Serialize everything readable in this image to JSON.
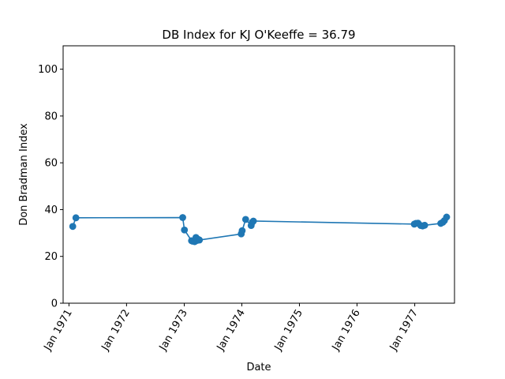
{
  "chart_data": {
    "type": "line",
    "title": "DB Index for KJ O'Keeffe = 36.79",
    "xlabel": "Date",
    "ylabel": "Don Bradman Index",
    "ylim": [
      0,
      110
    ],
    "xlim": [
      "1970-11-25",
      "1977-09-10"
    ],
    "grid": false,
    "color": "#1f77b4",
    "y_ticks": [
      0,
      20,
      40,
      60,
      80,
      100
    ],
    "x_ticks": [
      {
        "date": "1971-01-01",
        "label": "Jan 1971"
      },
      {
        "date": "1972-01-01",
        "label": "Jan 1972"
      },
      {
        "date": "1973-01-01",
        "label": "Jan 1973"
      },
      {
        "date": "1974-01-01",
        "label": "Jan 1974"
      },
      {
        "date": "1975-01-01",
        "label": "Jan 1975"
      },
      {
        "date": "1976-01-01",
        "label": "Jan 1976"
      },
      {
        "date": "1977-01-01",
        "label": "Jan 1977"
      }
    ],
    "series": [
      {
        "points": [
          {
            "x": "1971-01-25",
            "y": 32.8
          },
          {
            "x": "1971-02-14",
            "y": 36.5
          },
          {
            "x": "1972-12-22",
            "y": 36.6
          },
          {
            "x": "1973-01-02",
            "y": 31.3
          },
          {
            "x": "1973-02-16",
            "y": 26.7
          },
          {
            "x": "1973-02-23",
            "y": 26.5
          },
          {
            "x": "1973-03-08",
            "y": 26.3
          },
          {
            "x": "1973-03-16",
            "y": 28.1
          },
          {
            "x": "1973-03-23",
            "y": 26.8
          },
          {
            "x": "1973-03-30",
            "y": 27.3
          },
          {
            "x": "1973-04-07",
            "y": 27.0
          },
          {
            "x": "1973-12-28",
            "y": 29.6
          },
          {
            "x": "1974-01-03",
            "y": 31.0
          },
          {
            "x": "1974-01-25",
            "y": 35.8
          },
          {
            "x": "1974-03-01",
            "y": 33.2
          },
          {
            "x": "1974-03-08",
            "y": 34.6
          },
          {
            "x": "1974-03-15",
            "y": 35.1
          },
          {
            "x": "1976-12-29",
            "y": 33.8
          },
          {
            "x": "1977-01-08",
            "y": 34.1
          },
          {
            "x": "1977-01-22",
            "y": 34.2
          },
          {
            "x": "1977-02-08",
            "y": 33.2
          },
          {
            "x": "1977-02-20",
            "y": 33.0
          },
          {
            "x": "1977-03-05",
            "y": 33.3
          },
          {
            "x": "1977-06-15",
            "y": 34.1
          },
          {
            "x": "1977-06-28",
            "y": 34.6
          },
          {
            "x": "1977-07-08",
            "y": 35.3
          },
          {
            "x": "1977-07-22",
            "y": 36.8
          }
        ]
      }
    ]
  }
}
